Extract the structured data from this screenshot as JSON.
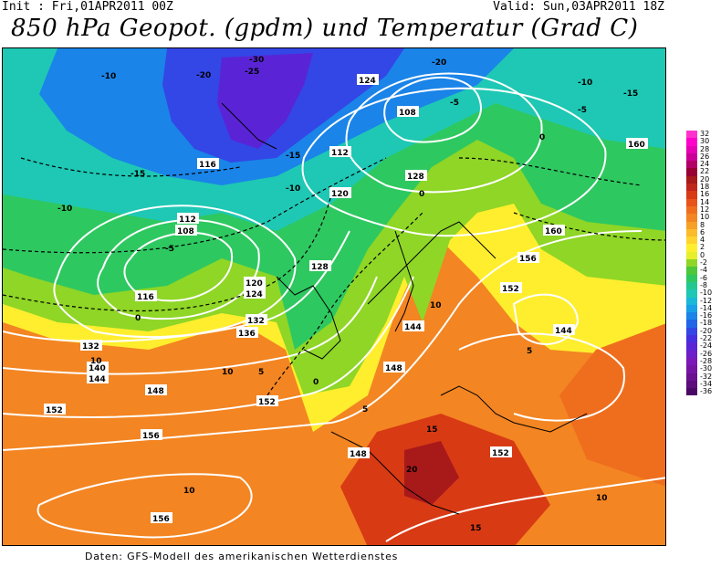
{
  "header": {
    "init": "Init : Fri,01APR2011 00Z",
    "valid": "Valid: Sun,03APR2011 18Z",
    "title": "850 hPa Geopot. (gpdm) und Temperatur (Grad C)"
  },
  "footer": "Daten: GFS-Modell des amerikanischen Wetterdienstes",
  "legend": [
    {
      "label": "32",
      "color": "#ff33cc"
    },
    {
      "label": "30",
      "color": "#ff00cc"
    },
    {
      "label": "28",
      "color": "#e600b3"
    },
    {
      "label": "26",
      "color": "#cc0099"
    },
    {
      "label": "24",
      "color": "#b30066"
    },
    {
      "label": "22",
      "color": "#990033"
    },
    {
      "label": "20",
      "color": "#a8191a"
    },
    {
      "label": "18",
      "color": "#c0261a"
    },
    {
      "label": "16",
      "color": "#d83a14"
    },
    {
      "label": "14",
      "color": "#e8531a"
    },
    {
      "label": "12",
      "color": "#ef6e1e"
    },
    {
      "label": "10",
      "color": "#f38522"
    },
    {
      "label": "8",
      "color": "#f7a026"
    },
    {
      "label": "6",
      "color": "#fbbb2a"
    },
    {
      "label": "4",
      "color": "#ffd42e"
    },
    {
      "label": "2",
      "color": "#ffee2e"
    },
    {
      "label": "0",
      "color": "#e6f02a"
    },
    {
      "label": "-2",
      "color": "#8fd626"
    },
    {
      "label": "-4",
      "color": "#4cc83a"
    },
    {
      "label": "-6",
      "color": "#2ec860"
    },
    {
      "label": "-8",
      "color": "#22c890"
    },
    {
      "label": "-10",
      "color": "#1ec8b4"
    },
    {
      "label": "-12",
      "color": "#1ab8d8"
    },
    {
      "label": "-14",
      "color": "#18a0e8"
    },
    {
      "label": "-16",
      "color": "#1a84e8"
    },
    {
      "label": "-18",
      "color": "#2266e8"
    },
    {
      "label": "-20",
      "color": "#3346e6"
    },
    {
      "label": "-22",
      "color": "#4430e0"
    },
    {
      "label": "-24",
      "color": "#5a24d6"
    },
    {
      "label": "-26",
      "color": "#6e1ec8"
    },
    {
      "label": "-28",
      "color": "#7a18b8"
    },
    {
      "label": "-30",
      "color": "#7614a4"
    },
    {
      "label": "-32",
      "color": "#6a1090"
    },
    {
      "label": "-34",
      "color": "#5c0c7c"
    },
    {
      "label": "-36",
      "color": "#4a0866"
    }
  ],
  "geopotential_labels": [
    "108",
    "112",
    "116",
    "120",
    "124",
    "128",
    "132",
    "136",
    "140",
    "144",
    "148",
    "152",
    "156",
    "160"
  ],
  "temperature_labels": [
    "-30",
    "-25",
    "-20",
    "-15",
    "-10",
    "-5",
    "0",
    "5",
    "10",
    "15",
    "20"
  ]
}
